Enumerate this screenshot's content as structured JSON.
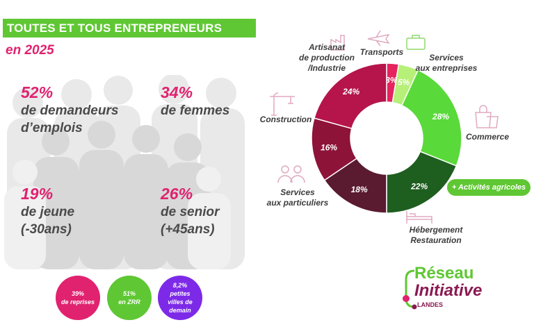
{
  "header": {
    "title": "TOUTES ET TOUS ENTREPRENEURS",
    "year": "en 2025"
  },
  "stats": [
    {
      "pct": "52%",
      "line1": "de demandeurs",
      "line2": "d’emplois"
    },
    {
      "pct": "34%",
      "line1": "de femmes",
      "line2": ""
    },
    {
      "pct": "19%",
      "line1": "de jeune",
      "line2": "(-30ans)"
    },
    {
      "pct": "26%",
      "line1": "de senior",
      "line2": "(+45ans)"
    }
  ],
  "bubbles": [
    {
      "value": "39%",
      "label": "de reprises",
      "color": "#e0226f"
    },
    {
      "value": "51%",
      "label": "en ZRR",
      "color": "#5fc733"
    },
    {
      "value": "8,2%",
      "label": "petites villes de demain",
      "color": "#7d2ae8"
    }
  ],
  "chart_data": {
    "type": "pie",
    "donut": true,
    "slices": [
      {
        "label": "Transports",
        "value": 3,
        "display": "3%",
        "color": "#e5245f"
      },
      {
        "label": "Services aux entreprises",
        "value": 5,
        "display": "5%",
        "color": "#b6f078"
      },
      {
        "label": "Commerce",
        "value": 28,
        "display": "28%",
        "color": "#5ad93a"
      },
      {
        "label": "Hébergement Restauration",
        "value": 22,
        "display": "22%",
        "color": "#1e5e1f"
      },
      {
        "label": "Services aux particuliers",
        "value": 18,
        "display": "18%",
        "color": "#5a1a30"
      },
      {
        "label": "Construction",
        "value": 16,
        "display": "16%",
        "color": "#8e1338"
      },
      {
        "label": "Artisanat de production /Industrie",
        "value": 24,
        "display": "24%",
        "color": "#b5154b"
      }
    ]
  },
  "categories": {
    "transports": "Transports",
    "services_entreprises_1": "Services",
    "services_entreprises_2": "aux entreprises",
    "commerce": "Commerce",
    "agri": "+ Activités agricoles",
    "hebergement_1": "Hébergement",
    "hebergement_2": "Restauration",
    "services_particuliers_1": "Services",
    "services_particuliers_2": "aux particuliers",
    "construction": "Construction",
    "artisanat_1": "Artisanat",
    "artisanat_2": "de production",
    "artisanat_3": "/Industrie"
  },
  "logo": {
    "line1": "Réseau",
    "line2": "Initiative",
    "line3": "LANDES"
  }
}
